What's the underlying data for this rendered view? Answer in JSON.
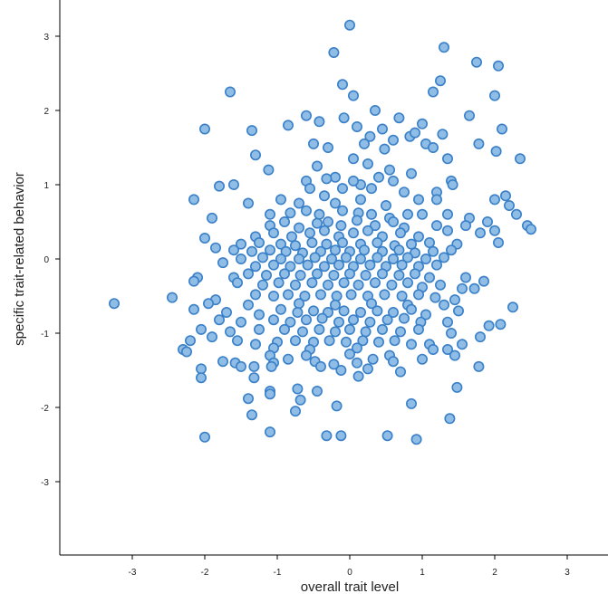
{
  "chart_data": {
    "type": "scatter",
    "xlabel": "overall trait level",
    "ylabel": "specific trait-related behavior",
    "xlim": [
      -4,
      3.5
    ],
    "ylim": [
      -4,
      3.5
    ],
    "xticks": [
      -3,
      -2,
      -1,
      0,
      1,
      2,
      3
    ],
    "yticks": [
      -3,
      -2,
      -1,
      0,
      1,
      2,
      3
    ],
    "grid": false,
    "colors": {
      "point_fill": "#8fbde6",
      "point_stroke": "#3a80c8",
      "axis": "#000000"
    },
    "points": [
      [
        0,
        3.15
      ],
      [
        -0.22,
        2.78
      ],
      [
        1.3,
        2.85
      ],
      [
        1.75,
        2.65
      ],
      [
        2.05,
        2.6
      ],
      [
        -1.65,
        2.25
      ],
      [
        -0.1,
        2.35
      ],
      [
        0.05,
        2.2
      ],
      [
        1.15,
        2.25
      ],
      [
        1.25,
        2.4
      ],
      [
        2.0,
        2.2
      ],
      [
        0.35,
        2.0
      ],
      [
        -0.6,
        1.93
      ],
      [
        -0.42,
        1.85
      ],
      [
        -0.08,
        1.9
      ],
      [
        0.68,
        1.9
      ],
      [
        1.65,
        1.93
      ],
      [
        -2.0,
        1.75
      ],
      [
        -1.35,
        1.73
      ],
      [
        -0.85,
        1.8
      ],
      [
        0.1,
        1.78
      ],
      [
        0.45,
        1.75
      ],
      [
        1.0,
        1.82
      ],
      [
        1.28,
        1.68
      ],
      [
        2.1,
        1.75
      ],
      [
        0.28,
        1.65
      ],
      [
        0.83,
        1.65
      ],
      [
        0.6,
        1.6
      ],
      [
        0.9,
        1.7
      ],
      [
        1.05,
        1.55
      ],
      [
        -0.5,
        1.55
      ],
      [
        -0.3,
        1.5
      ],
      [
        0.2,
        1.55
      ],
      [
        0.48,
        1.48
      ],
      [
        1.15,
        1.5
      ],
      [
        1.78,
        1.55
      ],
      [
        2.02,
        1.45
      ],
      [
        -1.3,
        1.4
      ],
      [
        1.35,
        1.35
      ],
      [
        -0.45,
        1.25
      ],
      [
        0.05,
        1.35
      ],
      [
        0.25,
        1.28
      ],
      [
        2.35,
        1.35
      ],
      [
        -0.2,
        1.1
      ],
      [
        0.55,
        1.2
      ],
      [
        0.85,
        1.15
      ],
      [
        1.4,
        1.05
      ],
      [
        -1.12,
        1.2
      ],
      [
        -0.32,
        1.08
      ],
      [
        -0.6,
        1.05
      ],
      [
        0.15,
        1.0
      ],
      [
        0.4,
        1.1
      ],
      [
        1.42,
        1.0
      ],
      [
        -1.8,
        0.98
      ],
      [
        -1.6,
        1.0
      ],
      [
        -0.95,
        0.8
      ],
      [
        -0.55,
        0.95
      ],
      [
        -0.35,
        0.85
      ],
      [
        -0.1,
        0.95
      ],
      [
        0.05,
        1.05
      ],
      [
        0.3,
        0.95
      ],
      [
        0.6,
        1.05
      ],
      [
        0.75,
        0.9
      ],
      [
        0.95,
        0.8
      ],
      [
        1.2,
        0.9
      ],
      [
        -2.15,
        0.8
      ],
      [
        -1.4,
        0.75
      ],
      [
        -0.7,
        0.75
      ],
      [
        -0.2,
        0.75
      ],
      [
        0.15,
        0.8
      ],
      [
        0.5,
        0.72
      ],
      [
        1.2,
        0.8
      ],
      [
        2.0,
        0.8
      ],
      [
        2.15,
        0.85
      ],
      [
        2.2,
        0.72
      ],
      [
        -1.1,
        0.6
      ],
      [
        -0.82,
        0.62
      ],
      [
        -0.6,
        0.65
      ],
      [
        -0.42,
        0.6
      ],
      [
        -0.1,
        0.65
      ],
      [
        0.12,
        0.62
      ],
      [
        0.3,
        0.6
      ],
      [
        0.55,
        0.55
      ],
      [
        0.8,
        0.6
      ],
      [
        1.0,
        0.6
      ],
      [
        1.35,
        0.6
      ],
      [
        1.65,
        0.55
      ],
      [
        2.3,
        0.6
      ],
      [
        -1.9,
        0.55
      ],
      [
        -1.1,
        0.45
      ],
      [
        -0.9,
        0.5
      ],
      [
        -0.7,
        0.42
      ],
      [
        -0.45,
        0.48
      ],
      [
        -0.3,
        0.5
      ],
      [
        -0.12,
        0.45
      ],
      [
        0.1,
        0.52
      ],
      [
        0.35,
        0.45
      ],
      [
        0.6,
        0.5
      ],
      [
        0.75,
        0.42
      ],
      [
        1.2,
        0.45
      ],
      [
        1.6,
        0.45
      ],
      [
        1.9,
        0.5
      ],
      [
        2.45,
        0.45
      ],
      [
        -1.3,
        0.3
      ],
      [
        -1.05,
        0.35
      ],
      [
        -0.8,
        0.3
      ],
      [
        -0.55,
        0.35
      ],
      [
        -0.35,
        0.38
      ],
      [
        -0.15,
        0.3
      ],
      [
        0.05,
        0.35
      ],
      [
        0.25,
        0.38
      ],
      [
        0.45,
        0.3
      ],
      [
        0.7,
        0.35
      ],
      [
        0.95,
        0.3
      ],
      [
        1.35,
        0.38
      ],
      [
        1.8,
        0.35
      ],
      [
        2.0,
        0.38
      ],
      [
        2.5,
        0.4
      ],
      [
        -2.0,
        0.28
      ],
      [
        -1.5,
        0.2
      ],
      [
        -1.25,
        0.22
      ],
      [
        -0.95,
        0.2
      ],
      [
        -0.75,
        0.18
      ],
      [
        -0.52,
        0.22
      ],
      [
        -0.32,
        0.2
      ],
      [
        -0.1,
        0.22
      ],
      [
        0.15,
        0.2
      ],
      [
        0.38,
        0.22
      ],
      [
        0.62,
        0.18
      ],
      [
        0.85,
        0.2
      ],
      [
        1.1,
        0.22
      ],
      [
        1.48,
        0.2
      ],
      [
        2.05,
        0.22
      ],
      [
        -1.85,
        0.15
      ],
      [
        -1.6,
        0.12
      ],
      [
        -1.35,
        0.1
      ],
      [
        -1.1,
        0.12
      ],
      [
        -0.88,
        0.1
      ],
      [
        -0.65,
        0.08
      ],
      [
        -0.4,
        0.1
      ],
      [
        -0.2,
        0.12
      ],
      [
        0,
        0.1
      ],
      [
        0.2,
        0.12
      ],
      [
        0.45,
        0.1
      ],
      [
        0.68,
        0.12
      ],
      [
        0.9,
        0.08
      ],
      [
        1.15,
        0.1
      ],
      [
        1.4,
        0.12
      ],
      [
        -1.5,
        0.0
      ],
      [
        -1.2,
        0.02
      ],
      [
        -0.95,
        0.0
      ],
      [
        -0.7,
        0.0
      ],
      [
        -0.48,
        0.02
      ],
      [
        -0.25,
        0.0
      ],
      [
        -0.05,
        0.02
      ],
      [
        0.15,
        0.0
      ],
      [
        0.38,
        0.02
      ],
      [
        0.6,
        0.0
      ],
      [
        0.8,
        0.02
      ],
      [
        1.05,
        0.0
      ],
      [
        1.3,
        0.02
      ],
      [
        -1.75,
        -0.05
      ],
      [
        -1.3,
        -0.1
      ],
      [
        -1.05,
        -0.08
      ],
      [
        -0.82,
        -0.1
      ],
      [
        -0.58,
        -0.08
      ],
      [
        -0.35,
        -0.1
      ],
      [
        -0.15,
        -0.08
      ],
      [
        0.05,
        -0.1
      ],
      [
        0.28,
        -0.08
      ],
      [
        0.5,
        -0.1
      ],
      [
        0.72,
        -0.08
      ],
      [
        0.95,
        -0.1
      ],
      [
        1.2,
        -0.08
      ],
      [
        -2.1,
        -0.25
      ],
      [
        -1.6,
        -0.25
      ],
      [
        -1.4,
        -0.2
      ],
      [
        -1.15,
        -0.22
      ],
      [
        -0.9,
        -0.2
      ],
      [
        -0.68,
        -0.22
      ],
      [
        -0.45,
        -0.2
      ],
      [
        -0.22,
        -0.22
      ],
      [
        0.0,
        -0.2
      ],
      [
        0.22,
        -0.22
      ],
      [
        0.45,
        -0.2
      ],
      [
        0.68,
        -0.22
      ],
      [
        0.9,
        -0.2
      ],
      [
        1.1,
        -0.25
      ],
      [
        1.6,
        -0.25
      ],
      [
        1.85,
        -0.3
      ],
      [
        -2.15,
        -0.3
      ],
      [
        -1.55,
        -0.32
      ],
      [
        -1.2,
        -0.35
      ],
      [
        -0.98,
        -0.32
      ],
      [
        -0.75,
        -0.35
      ],
      [
        -0.52,
        -0.32
      ],
      [
        -0.3,
        -0.35
      ],
      [
        -0.08,
        -0.32
      ],
      [
        0.12,
        -0.35
      ],
      [
        0.35,
        -0.32
      ],
      [
        0.58,
        -0.35
      ],
      [
        0.8,
        -0.32
      ],
      [
        1.0,
        -0.38
      ],
      [
        1.25,
        -0.35
      ],
      [
        1.55,
        -0.4
      ],
      [
        1.72,
        -0.4
      ],
      [
        -2.45,
        -0.52
      ],
      [
        -1.85,
        -0.55
      ],
      [
        -1.3,
        -0.48
      ],
      [
        -1.05,
        -0.5
      ],
      [
        -0.85,
        -0.48
      ],
      [
        -0.62,
        -0.5
      ],
      [
        -0.4,
        -0.48
      ],
      [
        -0.18,
        -0.5
      ],
      [
        0.02,
        -0.48
      ],
      [
        0.25,
        -0.5
      ],
      [
        0.48,
        -0.48
      ],
      [
        0.72,
        -0.5
      ],
      [
        0.95,
        -0.48
      ],
      [
        1.18,
        -0.52
      ],
      [
        1.45,
        -0.55
      ],
      [
        -1.95,
        -0.6
      ],
      [
        -1.4,
        -0.62
      ],
      [
        -0.7,
        -0.6
      ],
      [
        -0.2,
        -0.62
      ],
      [
        0.3,
        -0.6
      ],
      [
        0.8,
        -0.62
      ],
      [
        1.3,
        -0.62
      ],
      [
        -3.25,
        -0.6
      ],
      [
        -2.15,
        -0.68
      ],
      [
        -1.7,
        -0.72
      ],
      [
        -1.25,
        -0.75
      ],
      [
        -0.95,
        -0.68
      ],
      [
        -0.72,
        -0.72
      ],
      [
        -0.5,
        -0.7
      ],
      [
        -0.3,
        -0.72
      ],
      [
        -0.08,
        -0.7
      ],
      [
        0.15,
        -0.72
      ],
      [
        0.38,
        -0.7
      ],
      [
        0.6,
        -0.72
      ],
      [
        0.85,
        -0.68
      ],
      [
        1.05,
        -0.75
      ],
      [
        1.5,
        -0.7
      ],
      [
        2.25,
        -0.65
      ],
      [
        -1.8,
        -0.82
      ],
      [
        -1.5,
        -0.85
      ],
      [
        -1.05,
        -0.82
      ],
      [
        -0.82,
        -0.85
      ],
      [
        -0.6,
        -0.82
      ],
      [
        -0.38,
        -0.8
      ],
      [
        -0.15,
        -0.85
      ],
      [
        0.05,
        -0.82
      ],
      [
        0.28,
        -0.85
      ],
      [
        0.52,
        -0.82
      ],
      [
        0.75,
        -0.8
      ],
      [
        0.98,
        -0.85
      ],
      [
        1.35,
        -0.85
      ],
      [
        -2.05,
        -0.95
      ],
      [
        -1.65,
        -0.98
      ],
      [
        -1.25,
        -0.95
      ],
      [
        -0.9,
        -0.95
      ],
      [
        -0.65,
        -0.98
      ],
      [
        -0.42,
        -0.95
      ],
      [
        -0.2,
        -0.98
      ],
      [
        0.0,
        -0.95
      ],
      [
        0.22,
        -0.98
      ],
      [
        0.45,
        -0.95
      ],
      [
        0.7,
        -0.98
      ],
      [
        0.95,
        -0.95
      ],
      [
        1.4,
        -1.0
      ],
      [
        1.92,
        -0.9
      ],
      [
        2.08,
        -0.88
      ],
      [
        1.8,
        -1.05
      ],
      [
        -2.2,
        -1.1
      ],
      [
        -1.9,
        -1.05
      ],
      [
        -1.55,
        -1.1
      ],
      [
        -1.3,
        -1.15
      ],
      [
        -1.0,
        -1.12
      ],
      [
        -0.75,
        -1.1
      ],
      [
        -0.5,
        -1.12
      ],
      [
        -0.28,
        -1.1
      ],
      [
        -0.05,
        -1.12
      ],
      [
        0.18,
        -1.1
      ],
      [
        0.4,
        -1.12
      ],
      [
        0.62,
        -1.1
      ],
      [
        0.85,
        -1.15
      ],
      [
        1.1,
        -1.15
      ],
      [
        1.55,
        -1.15
      ],
      [
        -2.3,
        -1.22
      ],
      [
        -1.05,
        -1.2
      ],
      [
        -0.55,
        -1.22
      ],
      [
        0.1,
        -1.2
      ],
      [
        1.15,
        -1.22
      ],
      [
        1.35,
        -1.22
      ],
      [
        -2.25,
        -1.25
      ],
      [
        -1.1,
        -1.3
      ],
      [
        -0.6,
        -1.3
      ],
      [
        0.0,
        -1.28
      ],
      [
        0.55,
        -1.3
      ],
      [
        1.0,
        -1.35
      ],
      [
        1.45,
        -1.3
      ],
      [
        -1.75,
        -1.38
      ],
      [
        -1.58,
        -1.4
      ],
      [
        -1.32,
        -1.45
      ],
      [
        -1.05,
        -1.4
      ],
      [
        -0.85,
        -1.35
      ],
      [
        -0.48,
        -1.38
      ],
      [
        -0.22,
        -1.42
      ],
      [
        0.1,
        -1.4
      ],
      [
        0.32,
        -1.35
      ],
      [
        0.6,
        -1.38
      ],
      [
        -2.05,
        -1.48
      ],
      [
        -1.5,
        -1.45
      ],
      [
        -1.08,
        -1.45
      ],
      [
        -0.4,
        -1.45
      ],
      [
        -0.12,
        -1.5
      ],
      [
        0.25,
        -1.48
      ],
      [
        0.7,
        -1.52
      ],
      [
        1.78,
        -1.45
      ],
      [
        -2.05,
        -1.6
      ],
      [
        -1.32,
        -1.6
      ],
      [
        0.12,
        -1.58
      ],
      [
        -1.1,
        -1.78
      ],
      [
        -0.72,
        -1.75
      ],
      [
        -0.45,
        -1.78
      ],
      [
        1.48,
        -1.73
      ],
      [
        -1.1,
        -1.82
      ],
      [
        -1.4,
        -1.88
      ],
      [
        -0.68,
        -1.9
      ],
      [
        -1.35,
        -2.1
      ],
      [
        -0.18,
        -1.98
      ],
      [
        0.85,
        -1.95
      ],
      [
        -0.75,
        -2.05
      ],
      [
        1.38,
        -2.15
      ],
      [
        -0.12,
        -2.38
      ],
      [
        -0.32,
        -2.38
      ],
      [
        0.52,
        -2.38
      ],
      [
        0.92,
        -2.43
      ],
      [
        -1.1,
        -2.33
      ],
      [
        -2.0,
        -2.4
      ]
    ]
  }
}
